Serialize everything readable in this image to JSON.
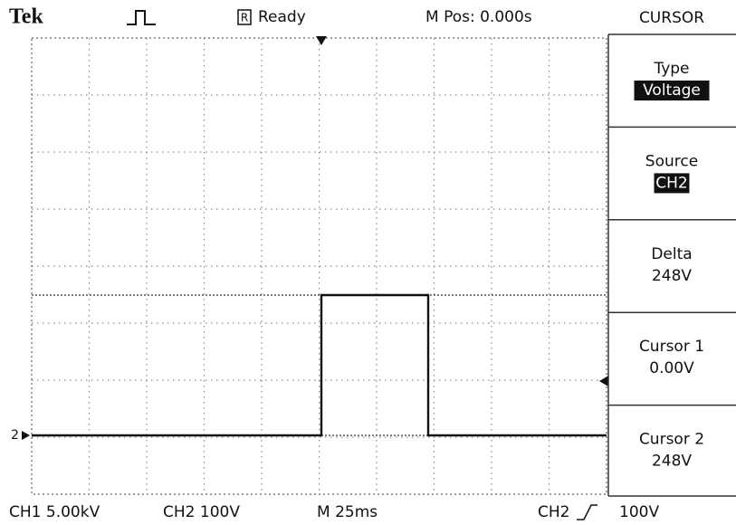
{
  "header": {
    "brand": "Tek",
    "status_icon": "R",
    "status": "Ready",
    "position": "M Pos: 0.000s",
    "menu_title": "CURSOR"
  },
  "menu": [
    {
      "label": "Type",
      "value": "Voltage",
      "highlight": true
    },
    {
      "label": "Source",
      "value": "CH2",
      "highlight": true
    },
    {
      "label": "Delta",
      "value": "248V",
      "highlight": false
    },
    {
      "label": "Cursor 1",
      "value": "0.00V",
      "highlight": false
    },
    {
      "label": "Cursor 2",
      "value": "248V",
      "highlight": false
    }
  ],
  "channel_marker": "2",
  "footer": {
    "ch1": "CH1 5.00kV",
    "ch2": "CH2 100V",
    "timebase": "M 25ms",
    "trigger_source": "CH2",
    "trigger_level": "100V"
  }
}
